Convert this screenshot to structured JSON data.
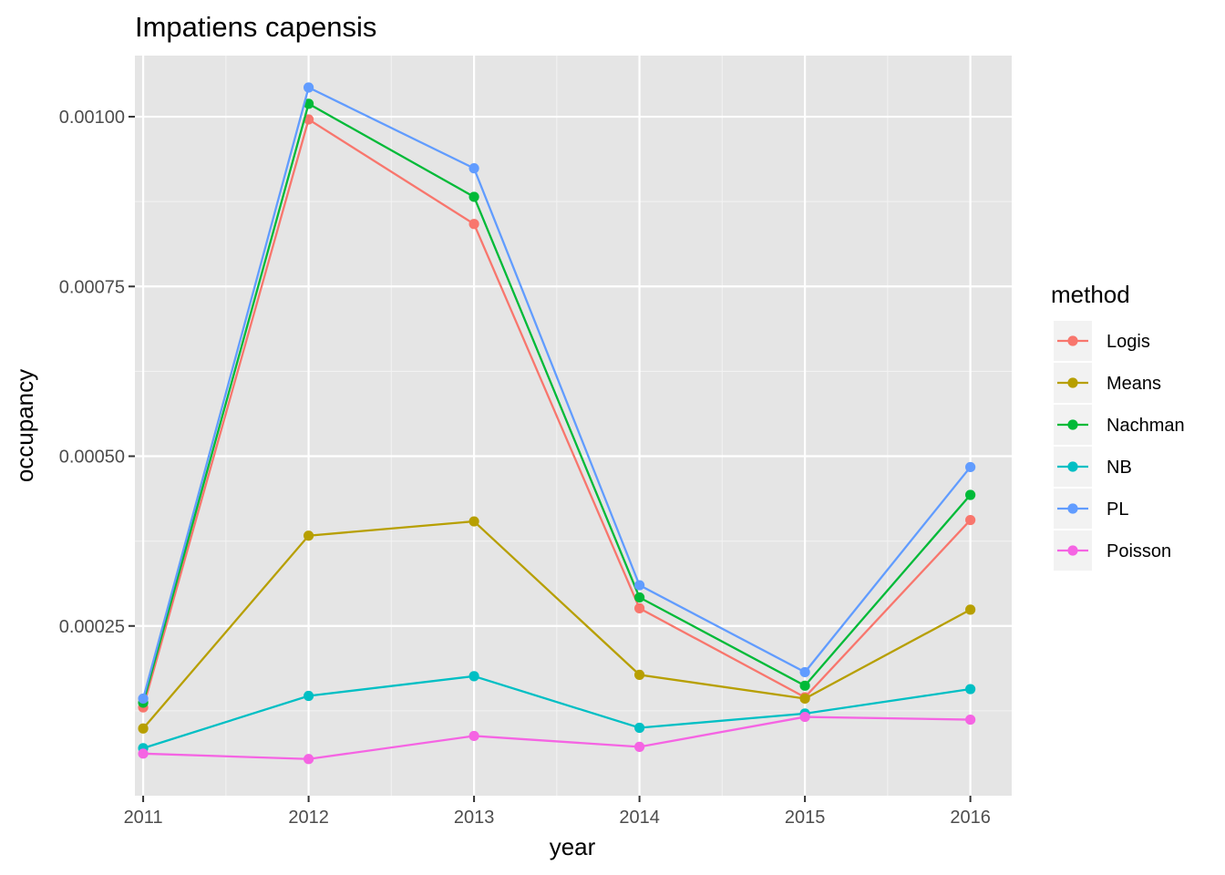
{
  "colors": {
    "panel_background": "#e5e5e5",
    "grid_major": "#ffffff",
    "grid_minor": "#f2f2f2",
    "tick": "#333333",
    "legend_key_background": "#f2f2f2"
  },
  "chart_data": {
    "type": "line",
    "title": "Impatiens capensis",
    "xlabel": "year",
    "ylabel": "occupancy",
    "x": [
      2011,
      2012,
      2013,
      2014,
      2015,
      2016
    ],
    "x_tick_labels": [
      "2011",
      "2012",
      "2013",
      "2014",
      "2015",
      "2016"
    ],
    "xlim": [
      2010.95,
      2016.25
    ],
    "ylim": [
      0.0,
      0.00109
    ],
    "y_ticks": [
      0.00025,
      0.0005,
      0.00075,
      0.001
    ],
    "y_tick_labels": [
      "0.00025",
      "0.00050",
      "0.00075",
      "0.00100"
    ],
    "grid": true,
    "markers": true,
    "legend": {
      "title": "method",
      "position": "right"
    },
    "series": [
      {
        "name": "Logis",
        "color": "#f8766d",
        "values": [
          0.00013,
          0.000996,
          0.000842,
          0.000276,
          0.000145,
          0.000406
        ]
      },
      {
        "name": "Means",
        "color": "#b79f00",
        "values": [
          9.9e-05,
          0.000383,
          0.000404,
          0.000178,
          0.000143,
          0.000274
        ]
      },
      {
        "name": "Nachman",
        "color": "#00ba38",
        "values": [
          0.000137,
          0.001019,
          0.000882,
          0.000292,
          0.000162,
          0.000443
        ]
      },
      {
        "name": "NB",
        "color": "#00bfc4",
        "values": [
          7e-05,
          0.000147,
          0.000176,
          0.0001,
          0.000121,
          0.000157
        ]
      },
      {
        "name": "PL",
        "color": "#619cff",
        "values": [
          0.000143,
          0.001043,
          0.000924,
          0.00031,
          0.000182,
          0.000484
        ]
      },
      {
        "name": "Poisson",
        "color": "#f564e3",
        "values": [
          6.2e-05,
          5.4e-05,
          8.8e-05,
          7.2e-05,
          0.000116,
          0.000112
        ]
      }
    ]
  }
}
